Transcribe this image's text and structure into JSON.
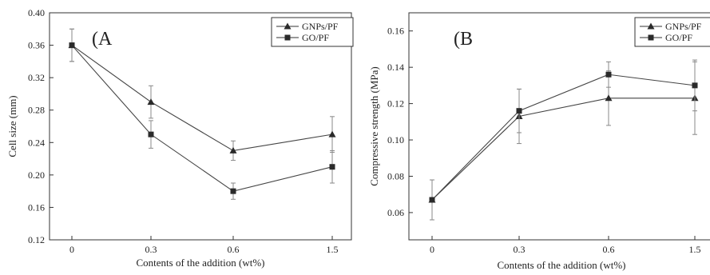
{
  "chart_data": [
    {
      "type": "line",
      "panel_label": "(A",
      "xlabel": "Contents of the addition (wt%)",
      "ylabel": "Cell size (mm)",
      "categories": [
        "0",
        "0.3",
        "0.6",
        "1.5"
      ],
      "ylim": [
        0.12,
        0.4
      ],
      "yticks": [
        "0.12",
        "0.16",
        "0.20",
        "0.24",
        "0.28",
        "0.32",
        "0.36",
        "0.40"
      ],
      "legend_position": "top-right",
      "series": [
        {
          "name": "GNPs/PF",
          "marker": "triangle",
          "values": [
            0.36,
            0.29,
            0.23,
            0.25
          ],
          "errors": [
            0.02,
            0.02,
            0.012,
            0.022
          ]
        },
        {
          "name": "GO/PF",
          "marker": "square",
          "values": [
            0.36,
            0.25,
            0.18,
            0.21
          ],
          "errors": [
            0.02,
            0.017,
            0.01,
            0.02
          ]
        }
      ]
    },
    {
      "type": "line",
      "panel_label": "(B",
      "xlabel": "Contents of the addition (wt%)",
      "ylabel": "Compressive strength (MPa)",
      "categories": [
        "0",
        "0.3",
        "0.6",
        "1.5"
      ],
      "ylim": [
        0.045,
        0.17
      ],
      "yticks": [
        "0.06",
        "0.08",
        "0.10",
        "0.12",
        "0.14",
        "0.16"
      ],
      "legend_position": "top-right",
      "series": [
        {
          "name": "GNPs/PF",
          "marker": "triangle",
          "values": [
            0.067,
            0.113,
            0.123,
            0.123
          ],
          "errors": [
            0.011,
            0.015,
            0.015,
            0.02
          ]
        },
        {
          "name": "GO/PF",
          "marker": "square",
          "values": [
            0.067,
            0.116,
            0.136,
            0.13
          ],
          "errors": [
            0.011,
            0.012,
            0.007,
            0.014
          ]
        }
      ]
    }
  ]
}
